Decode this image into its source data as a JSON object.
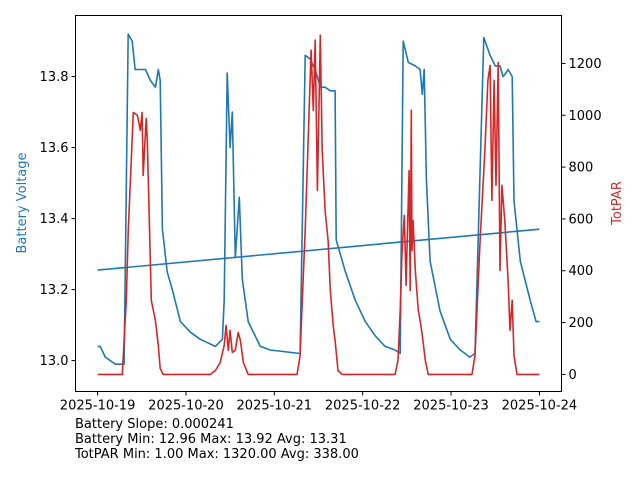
{
  "chart_data": {
    "type": "line",
    "x_tick_labels": [
      "2025-10-19",
      "2025-10-20",
      "2025-10-21",
      "2025-10-22",
      "2025-10-23",
      "2025-10-24"
    ],
    "x_unit": "hours since 2025-10-19 00:00",
    "xlim": [
      -6,
      126
    ],
    "left_axis": {
      "label": "Battery Voltage",
      "color": "#1f77b4",
      "ylim": [
        12.913,
        13.972
      ],
      "ticks": [
        13.0,
        13.2,
        13.4,
        13.6,
        13.8
      ],
      "tick_labels": [
        "13.0",
        "13.2",
        "13.4",
        "13.6",
        "13.8"
      ]
    },
    "right_axis": {
      "label": "TotPAR",
      "color": "#d62728",
      "ylim": [
        -66,
        1385
      ],
      "ticks": [
        0,
        200,
        400,
        600,
        800,
        1000,
        1200
      ],
      "tick_labels": [
        "0",
        "200",
        "400",
        "600",
        "800",
        "1000",
        "1200"
      ]
    },
    "series": [
      {
        "name": "Battery Voltage",
        "axis": "left",
        "color": "#1f77b4",
        "points": [
          [
            0,
            13.04
          ],
          [
            0.7,
            13.04
          ],
          [
            2.1,
            13.01
          ],
          [
            4.8,
            12.99
          ],
          [
            7.2,
            12.99
          ],
          [
            8.3,
            13.92
          ],
          [
            9.4,
            13.9
          ],
          [
            10.2,
            13.82
          ],
          [
            13,
            13.82
          ],
          [
            14.3,
            13.79
          ],
          [
            15.7,
            13.77
          ],
          [
            16.2,
            13.8
          ],
          [
            16.5,
            13.82
          ],
          [
            17,
            13.79
          ],
          [
            17.6,
            13.37
          ],
          [
            18.9,
            13.25
          ],
          [
            20.3,
            13.2
          ],
          [
            22.5,
            13.11
          ],
          [
            25.2,
            13.08
          ],
          [
            27.9,
            13.06
          ],
          [
            32,
            13.04
          ],
          [
            33.9,
            13.06
          ],
          [
            34.4,
            13.17
          ],
          [
            35.2,
            13.81
          ],
          [
            36,
            13.6
          ],
          [
            36.6,
            13.7
          ],
          [
            37.4,
            13.29
          ],
          [
            38.5,
            13.46
          ],
          [
            39.3,
            13.23
          ],
          [
            40.9,
            13.11
          ],
          [
            44.2,
            13.04
          ],
          [
            46.9,
            13.03
          ],
          [
            55,
            13.02
          ],
          [
            56.4,
            13.86
          ],
          [
            57.7,
            13.85
          ],
          [
            59.1,
            13.82
          ],
          [
            60.5,
            13.77
          ],
          [
            61.8,
            13.77
          ],
          [
            63.2,
            13.76
          ],
          [
            64.5,
            13.76
          ],
          [
            64.8,
            13.34
          ],
          [
            67.3,
            13.25
          ],
          [
            70,
            13.17
          ],
          [
            72.7,
            13.11
          ],
          [
            75.4,
            13.07
          ],
          [
            78.1,
            13.04
          ],
          [
            80.8,
            13.03
          ],
          [
            82.2,
            13.02
          ],
          [
            83,
            13.9
          ],
          [
            84.4,
            13.84
          ],
          [
            86.3,
            13.83
          ],
          [
            87.6,
            13.82
          ],
          [
            88.2,
            13.75
          ],
          [
            88.7,
            13.82
          ],
          [
            89.3,
            13.51
          ],
          [
            90.3,
            13.28
          ],
          [
            93,
            13.14
          ],
          [
            95.8,
            13.06
          ],
          [
            98.5,
            13.03
          ],
          [
            101.1,
            13.01
          ],
          [
            102.5,
            13.02
          ],
          [
            104.9,
            13.91
          ],
          [
            106.6,
            13.86
          ],
          [
            108,
            13.83
          ],
          [
            109.3,
            13.83
          ],
          [
            110.1,
            13.8
          ],
          [
            110.9,
            13.81
          ],
          [
            111.5,
            13.82
          ],
          [
            112.6,
            13.8
          ],
          [
            113.1,
            13.45
          ],
          [
            114.8,
            13.28
          ],
          [
            117.5,
            13.17
          ],
          [
            119.1,
            13.11
          ],
          [
            120,
            13.11
          ]
        ]
      },
      {
        "name": "Trend",
        "axis": "left",
        "color": "#1f77b4",
        "points": [
          [
            0,
            13.255
          ],
          [
            120,
            13.37
          ]
        ]
      },
      {
        "name": "TotPAR",
        "axis": "right",
        "color": "#d62728",
        "points": [
          [
            0,
            0
          ],
          [
            6.7,
            0
          ],
          [
            7.2,
            131
          ],
          [
            7.8,
            286
          ],
          [
            8.3,
            548
          ],
          [
            9.7,
            1011
          ],
          [
            10.8,
            1000
          ],
          [
            11.6,
            942
          ],
          [
            12.1,
            1011
          ],
          [
            12.4,
            768
          ],
          [
            13.2,
            988
          ],
          [
            13.5,
            903
          ],
          [
            14.6,
            286
          ],
          [
            15.7,
            208
          ],
          [
            16.5,
            112
          ],
          [
            17,
            23
          ],
          [
            17.8,
            0
          ],
          [
            30.6,
            0
          ],
          [
            32,
            15
          ],
          [
            33.3,
            46
          ],
          [
            34.4,
            112
          ],
          [
            34.9,
            189
          ],
          [
            35.5,
            93
          ],
          [
            36,
            170
          ],
          [
            36.6,
            85
          ],
          [
            37.4,
            93
          ],
          [
            38.2,
            162
          ],
          [
            38.8,
            131
          ],
          [
            39.6,
            46
          ],
          [
            40.9,
            0
          ],
          [
            54.2,
            0
          ],
          [
            55,
            73
          ],
          [
            55.6,
            286
          ],
          [
            56.4,
            556
          ],
          [
            58,
            1251
          ],
          [
            58.6,
            1019
          ],
          [
            59.1,
            1290
          ],
          [
            59.7,
            710
          ],
          [
            60.5,
            1309
          ],
          [
            61,
            865
          ],
          [
            61.8,
            633
          ],
          [
            62.6,
            517
          ],
          [
            63.2,
            324
          ],
          [
            64,
            189
          ],
          [
            64.5,
            131
          ],
          [
            65.3,
            15
          ],
          [
            66.4,
            0
          ],
          [
            80.8,
            0
          ],
          [
            81.6,
            54
          ],
          [
            82.2,
            247
          ],
          [
            82.7,
            479
          ],
          [
            83.3,
            614
          ],
          [
            83.8,
            344
          ],
          [
            84.1,
            517
          ],
          [
            84.6,
            787
          ],
          [
            84.9,
            324
          ],
          [
            85.2,
            1019
          ],
          [
            85.4,
            479
          ],
          [
            85.7,
            594
          ],
          [
            86.3,
            401
          ],
          [
            87.1,
            247
          ],
          [
            87.6,
            208
          ],
          [
            88.2,
            151
          ],
          [
            89,
            54
          ],
          [
            89.8,
            0
          ],
          [
            101.7,
            0
          ],
          [
            102.5,
            73
          ],
          [
            103.9,
            517
          ],
          [
            105.2,
            865
          ],
          [
            106,
            1135
          ],
          [
            106.6,
            1193
          ],
          [
            107.1,
            672
          ],
          [
            107.7,
            1135
          ],
          [
            108.2,
            730
          ],
          [
            108.8,
            1204
          ],
          [
            109.3,
            401
          ],
          [
            109.8,
            730
          ],
          [
            110.6,
            594
          ],
          [
            111.5,
            363
          ],
          [
            112,
            170
          ],
          [
            112.6,
            286
          ],
          [
            113.1,
            73
          ],
          [
            113.9,
            0
          ],
          [
            120,
            0
          ]
        ]
      }
    ]
  },
  "stats": {
    "line1": "Battery Slope: 0.000241",
    "line2": "Battery Min: 12.96 Max: 13.92 Avg: 13.31",
    "line3": "TotPAR Min: 1.00 Max: 1320.00 Avg: 338.00"
  }
}
